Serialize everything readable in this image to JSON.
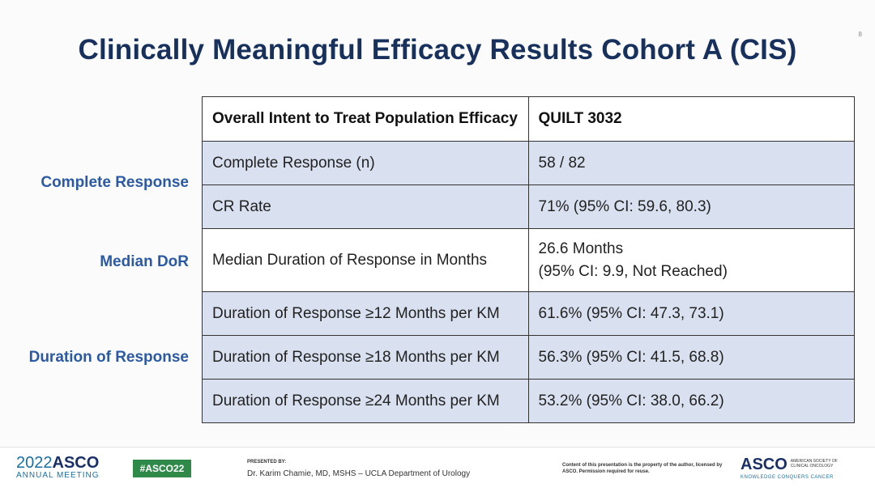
{
  "slide": {
    "page_number": "8",
    "title": "Clinically Meaningful Efficacy Results Cohort A (CIS)"
  },
  "side_labels": {
    "complete_response": "Complete Response",
    "median_dor": "Median DoR",
    "duration_of_response": "Duration of Response"
  },
  "table": {
    "headers": [
      "Overall Intent to Treat Population Efficacy",
      "QUILT 3032"
    ],
    "rows": [
      {
        "label": "Complete Response (n)",
        "value": "58 / 82"
      },
      {
        "label": "CR Rate",
        "value": "71% (95% CI: 59.6, 80.3)"
      },
      {
        "label": "Median Duration of Response in Months",
        "value_line1": "26.6 Months",
        "value_line2": "(95% CI: 9.9, Not Reached)"
      },
      {
        "label": "Duration of Response ≥12 Months per KM",
        "value": "61.6% (95% CI: 47.3, 73.1)"
      },
      {
        "label": "Duration of Response ≥18 Months per KM",
        "value": "56.3% (95% CI: 41.5, 68.8)"
      },
      {
        "label": "Duration of Response ≥24 Months per KM",
        "value": "53.2% (95% CI: 38.0, 66.2)"
      }
    ]
  },
  "footer": {
    "asco_year": "2022",
    "asco_name": "ASCO",
    "asco_sub": "ANNUAL MEETING",
    "hashtag": "#ASCO22",
    "presented_by_label": "PRESENTED BY:",
    "presenter": "Dr. Karim Chamie, MD, MSHS – UCLA Department of Urology",
    "content_note": "Content of this presentation is the property of the author, licensed by ASCO. Permission required for reuse.",
    "asco_logo": "ASCO",
    "society": "AMERICAN SOCIETY OF CLINICAL ONCOLOGY",
    "tagline": "KNOWLEDGE CONQUERS CANCER"
  },
  "colors": {
    "title": "#17305c",
    "side_label": "#2b5aa3",
    "row_shade": "#d9e1f0",
    "hashtag_bg": "#2f8a4a"
  }
}
